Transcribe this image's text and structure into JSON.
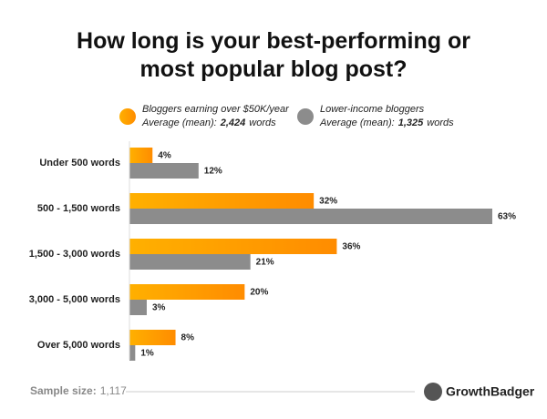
{
  "chart_data": {
    "type": "grouped-hbar",
    "title": "How long is your best-performing or most popular blog post?",
    "categories": [
      "Under 500 words",
      "500 - 1,500 words",
      "1,500 - 3,000 words",
      "3,000 - 5,000 words",
      "Over 5,000 words"
    ],
    "series": [
      {
        "name": "Bloggers earning over $50K/year",
        "color": "#fb9a05",
        "values": [
          4,
          32,
          36,
          20,
          8
        ],
        "value_labels": [
          "4%",
          "32%",
          "36%",
          "20%",
          "8%"
        ],
        "average_label": "Average (mean):",
        "average": {
          "value": 2424,
          "label": "2,424"
        },
        "average_unit": "words"
      },
      {
        "name": "Lower-income bloggers",
        "color": "#8c8c8c",
        "values": [
          12,
          63,
          21,
          3,
          1
        ],
        "value_labels": [
          "12%",
          "63%",
          "21%",
          "3%",
          "1%"
        ],
        "average_label": "Average (mean):",
        "average": {
          "value": 1325,
          "label": "1,325"
        },
        "average_unit": "words"
      }
    ],
    "footer": {
      "sample_label": "Sample size:",
      "sample_size": {
        "value": 1117,
        "label": "1,117"
      }
    },
    "brand": "GrowthBadger"
  }
}
